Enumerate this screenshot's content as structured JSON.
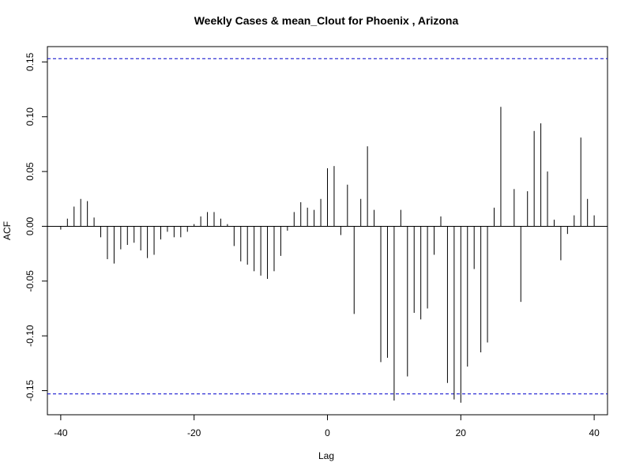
{
  "chart_data": {
    "type": "bar",
    "subtype": "acf-lollipop",
    "title": "Weekly Cases & mean_Clout for Phoenix , Arizona",
    "xlabel": "Lag",
    "ylabel": "ACF",
    "xlim": [
      -42,
      42
    ],
    "ylim": [
      -0.172,
      0.164
    ],
    "x_ticks": [
      -40,
      -20,
      0,
      20,
      40
    ],
    "x_tick_labels": [
      "-40",
      "-20",
      "0",
      "20",
      "40"
    ],
    "y_ticks": [
      -0.15,
      -0.1,
      -0.05,
      0.0,
      0.05,
      0.1,
      0.15
    ],
    "y_tick_labels": [
      "-0.15",
      "-0.10",
      "-0.05",
      "0.00",
      "0.05",
      "0.10",
      "0.15"
    ],
    "confidence_bounds": [
      0.153,
      -0.153
    ],
    "confidence_color": "#0000cc",
    "bar_color": "#000000",
    "grid": false,
    "x": [
      -40,
      -39,
      -38,
      -37,
      -36,
      -35,
      -34,
      -33,
      -32,
      -31,
      -30,
      -29,
      -28,
      -27,
      -26,
      -25,
      -24,
      -23,
      -22,
      -21,
      -20,
      -19,
      -18,
      -17,
      -16,
      -15,
      -14,
      -13,
      -12,
      -11,
      -10,
      -9,
      -8,
      -7,
      -6,
      -5,
      -4,
      -3,
      -2,
      -1,
      0,
      1,
      2,
      3,
      4,
      5,
      6,
      7,
      8,
      9,
      10,
      11,
      12,
      13,
      14,
      15,
      16,
      17,
      18,
      19,
      20,
      21,
      22,
      23,
      24,
      25,
      26,
      27,
      28,
      29,
      30,
      31,
      32,
      33,
      34,
      35,
      36,
      37,
      38,
      39,
      40
    ],
    "values": [
      -0.003,
      0.007,
      0.018,
      0.025,
      0.023,
      0.008,
      -0.01,
      -0.03,
      -0.034,
      -0.021,
      -0.017,
      -0.015,
      -0.022,
      -0.029,
      -0.026,
      -0.012,
      -0.005,
      -0.01,
      -0.01,
      -0.005,
      0.002,
      0.009,
      0.013,
      0.013,
      0.007,
      0.002,
      -0.018,
      -0.032,
      -0.035,
      -0.041,
      -0.045,
      -0.048,
      -0.041,
      -0.027,
      -0.004,
      0.013,
      0.022,
      0.017,
      0.015,
      0.025,
      0.053,
      0.055,
      -0.008,
      0.038,
      -0.08,
      0.025,
      0.073,
      0.015,
      -0.124,
      -0.12,
      -0.159,
      0.015,
      -0.137,
      -0.079,
      -0.085,
      -0.075,
      -0.026,
      0.009,
      -0.143,
      -0.158,
      -0.161,
      -0.128,
      -0.039,
      -0.115,
      -0.106,
      0.017,
      0.109,
      0.0,
      0.034,
      -0.069,
      0.032,
      0.087,
      0.094,
      0.05,
      0.006,
      -0.031,
      -0.007,
      0.01,
      0.081,
      0.025,
      0.01
    ]
  }
}
